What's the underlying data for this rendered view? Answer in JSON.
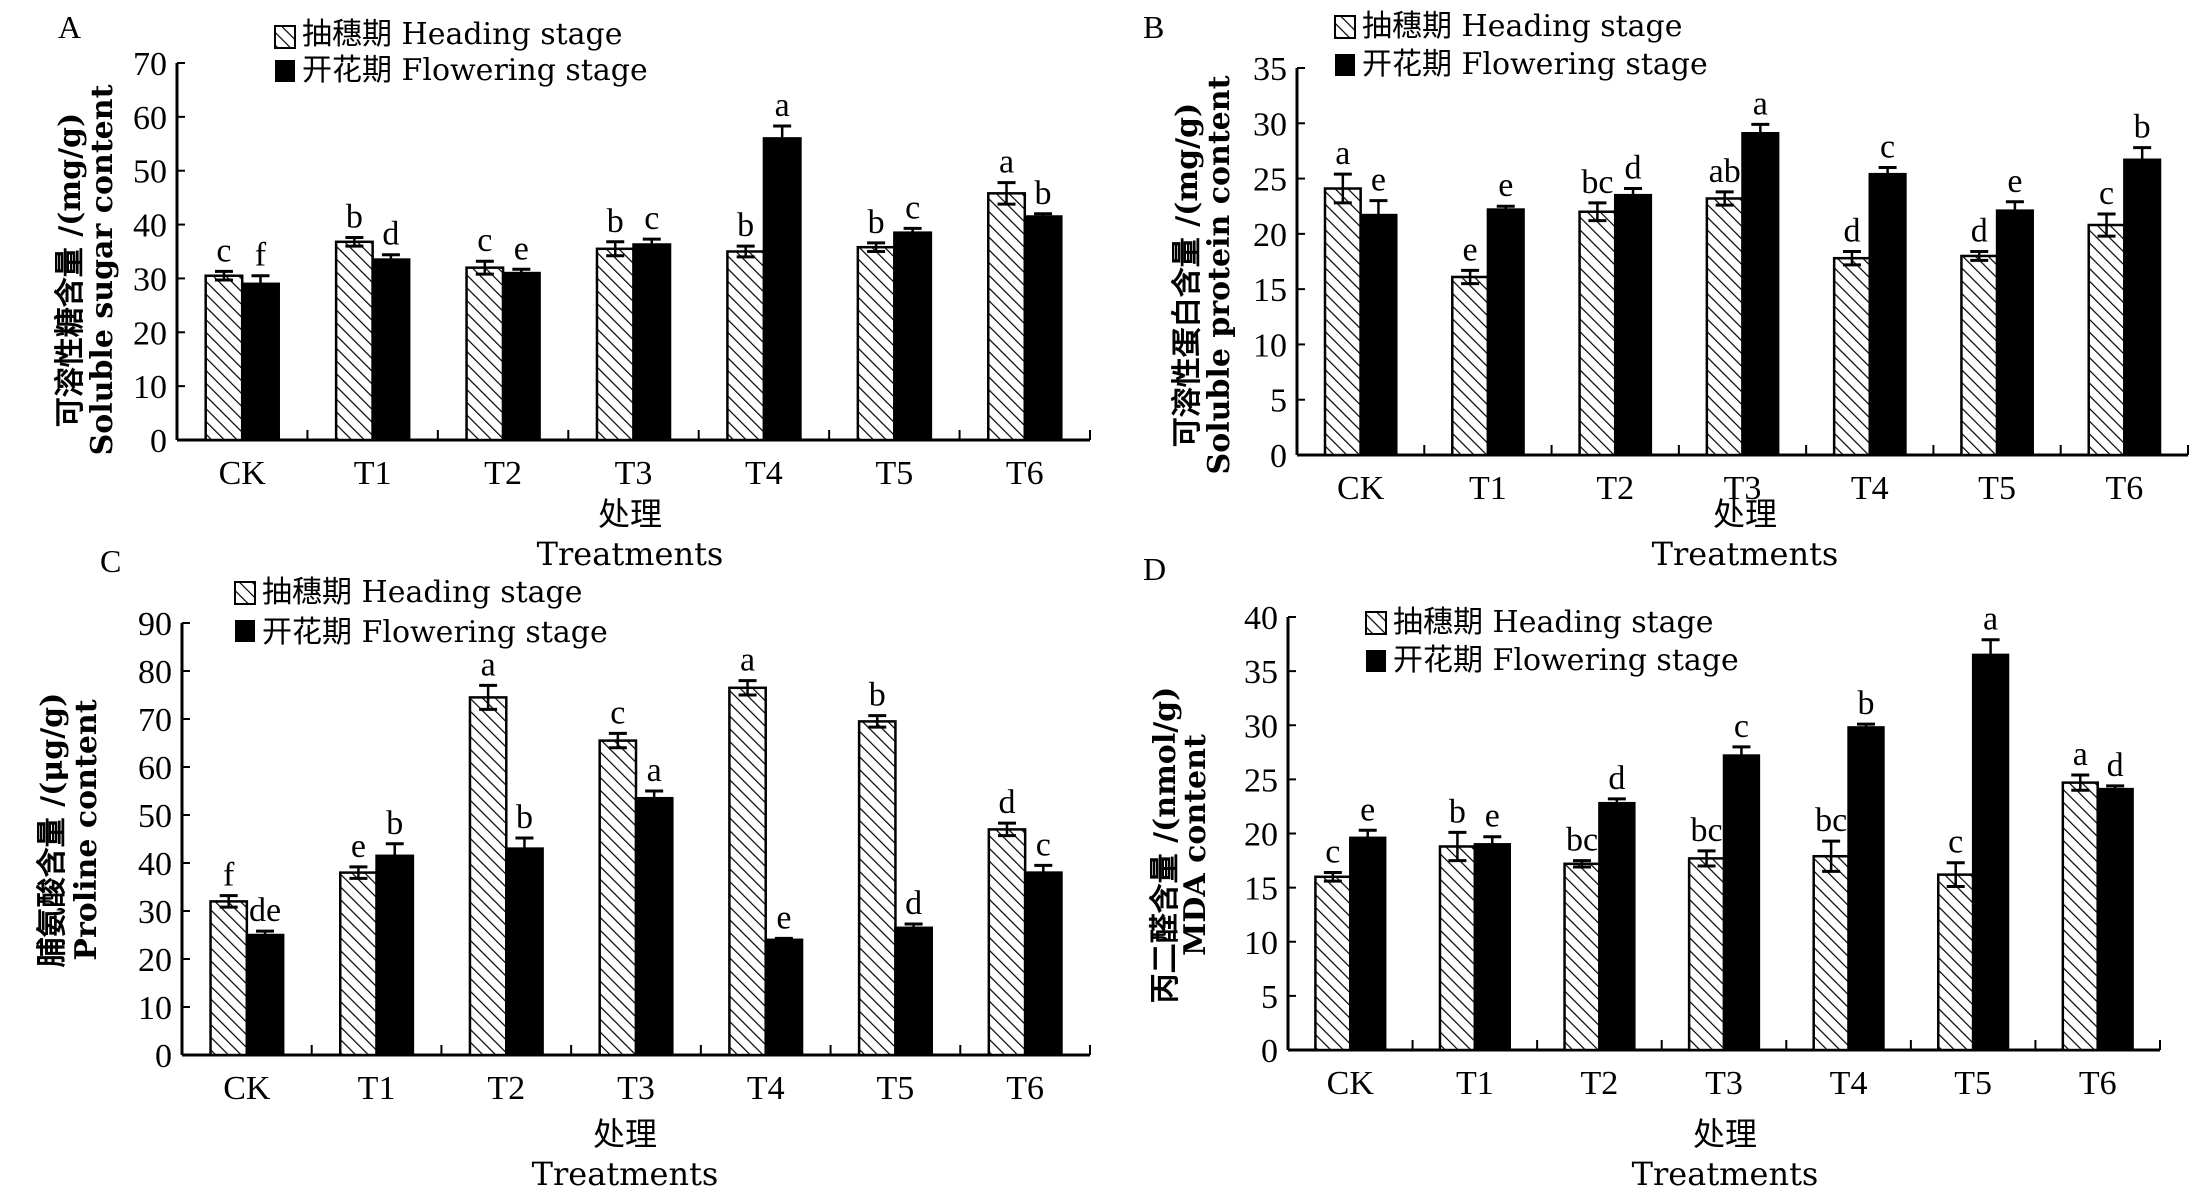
{
  "figure": {
    "legend": {
      "heading": "抽穗期 Heading stage",
      "flowering": "开花期 Flowering stage"
    },
    "colors": {
      "heading_fill": "#ffffff",
      "heading_hatch": "#000000",
      "flowering_fill": "#000000"
    }
  },
  "chart_data": [
    {
      "type": "bar",
      "panel": "A",
      "title": "",
      "ylabel_cn": "可溶性糖含量 /(mg/g)",
      "ylabel_en": "Soluble sugar content",
      "xlabel_cn": "处理",
      "xlabel_en": "Treatments",
      "categories": [
        "CK",
        "T1",
        "T2",
        "T3",
        "T4",
        "T5",
        "T6"
      ],
      "ylim": [
        0,
        70
      ],
      "yticks": [
        0,
        10,
        20,
        30,
        40,
        50,
        60,
        70
      ],
      "legend_position": "top-center",
      "grid": false,
      "series": [
        {
          "name": "抽穗期 Heading stage",
          "values": [
            30.5,
            36.8,
            32.0,
            35.5,
            35.0,
            35.8,
            45.8
          ],
          "errors": [
            0.8,
            0.8,
            1.2,
            1.3,
            1.0,
            0.8,
            2.0
          ],
          "letters": [
            "c",
            "b",
            "c",
            "b",
            "b",
            "b",
            "a"
          ]
        },
        {
          "name": "开花期 Flowering stage",
          "values": [
            29.0,
            33.5,
            31.0,
            36.3,
            56.0,
            38.5,
            41.5
          ],
          "errors": [
            1.5,
            0.9,
            0.7,
            1.0,
            2.3,
            0.8,
            0.5
          ],
          "letters": [
            "f",
            "d",
            "e",
            "c",
            "a",
            "c",
            "b"
          ]
        }
      ]
    },
    {
      "type": "bar",
      "panel": "B",
      "title": "",
      "ylabel_cn": "可溶性蛋白含量 /(mg/g)",
      "ylabel_en": "Soluble protein content",
      "xlabel_cn": "处理",
      "xlabel_en": "Treatments",
      "categories": [
        "CK",
        "T1",
        "T2",
        "T3",
        "T4",
        "T5",
        "T6"
      ],
      "ylim": [
        0,
        35
      ],
      "yticks": [
        0,
        5,
        10,
        15,
        20,
        25,
        30,
        35
      ],
      "legend_position": "top-left",
      "grid": false,
      "series": [
        {
          "name": "抽穗期 Heading stage",
          "values": [
            24.1,
            16.1,
            22.0,
            23.2,
            17.8,
            18.0,
            20.8
          ],
          "errors": [
            1.3,
            0.6,
            0.8,
            0.6,
            0.6,
            0.4,
            1.0
          ],
          "letters": [
            "a",
            "e",
            "bc",
            "ab",
            "d",
            "d",
            "c"
          ]
        },
        {
          "name": "开花期 Flowering stage",
          "values": [
            21.7,
            22.2,
            23.5,
            29.1,
            25.4,
            22.1,
            26.7
          ],
          "errors": [
            1.3,
            0.3,
            0.6,
            0.8,
            0.6,
            0.8,
            1.1
          ],
          "letters": [
            "e",
            "e",
            "d",
            "a",
            "c",
            "e",
            "b"
          ]
        }
      ]
    },
    {
      "type": "bar",
      "panel": "C",
      "title": "",
      "ylabel_cn": "脯氨酸含量 /(μg/g)",
      "ylabel_en": "Proline content",
      "xlabel_cn": "处理",
      "xlabel_en": "Treatments",
      "categories": [
        "CK",
        "T1",
        "T2",
        "T3",
        "T4",
        "T5",
        "T6"
      ],
      "ylim": [
        0,
        90
      ],
      "yticks": [
        0,
        10,
        20,
        30,
        40,
        50,
        60,
        70,
        80,
        90
      ],
      "legend_position": "top-left",
      "grid": false,
      "series": [
        {
          "name": "抽穗期 Heading stage",
          "values": [
            32.0,
            38.0,
            74.5,
            65.5,
            76.5,
            69.5,
            47.0
          ],
          "errors": [
            1.2,
            1.2,
            2.5,
            1.5,
            1.5,
            1.2,
            1.3
          ],
          "letters": [
            "f",
            "e",
            "a",
            "c",
            "a",
            "b",
            "d"
          ]
        },
        {
          "name": "开花期 Flowering stage",
          "values": [
            25.0,
            41.5,
            43.0,
            53.5,
            24.0,
            26.5,
            38.0
          ],
          "errors": [
            0.8,
            2.5,
            2.2,
            1.5,
            0.3,
            0.8,
            1.5
          ],
          "letters": [
            "de",
            "b",
            "b",
            "a",
            "e",
            "d",
            "c"
          ]
        }
      ]
    },
    {
      "type": "bar",
      "panel": "D",
      "title": "",
      "ylabel_cn": "丙二醛含量 /(nmol/g)",
      "ylabel_en": "MDA content",
      "xlabel_cn": "处理",
      "xlabel_en": "Treatments",
      "categories": [
        "CK",
        "T1",
        "T2",
        "T3",
        "T4",
        "T5",
        "T6"
      ],
      "ylim": [
        0,
        40
      ],
      "yticks": [
        0,
        5,
        10,
        15,
        20,
        25,
        30,
        35,
        40
      ],
      "legend_position": "top-left",
      "grid": false,
      "series": [
        {
          "name": "抽穗期 Heading stage",
          "values": [
            16.0,
            18.8,
            17.2,
            17.7,
            17.9,
            16.2,
            24.7
          ],
          "errors": [
            0.4,
            1.3,
            0.3,
            0.7,
            1.4,
            1.1,
            0.7
          ],
          "letters": [
            "c",
            "b",
            "bc",
            "bc",
            "bc",
            "c",
            "a"
          ]
        },
        {
          "name": "开花期 Flowering stage",
          "values": [
            19.6,
            19.0,
            22.8,
            27.2,
            29.8,
            36.5,
            24.1
          ],
          "errors": [
            0.7,
            0.7,
            0.4,
            0.8,
            0.3,
            1.4,
            0.3
          ],
          "letters": [
            "e",
            "e",
            "d",
            "c",
            "b",
            "a",
            "d"
          ]
        }
      ]
    }
  ]
}
